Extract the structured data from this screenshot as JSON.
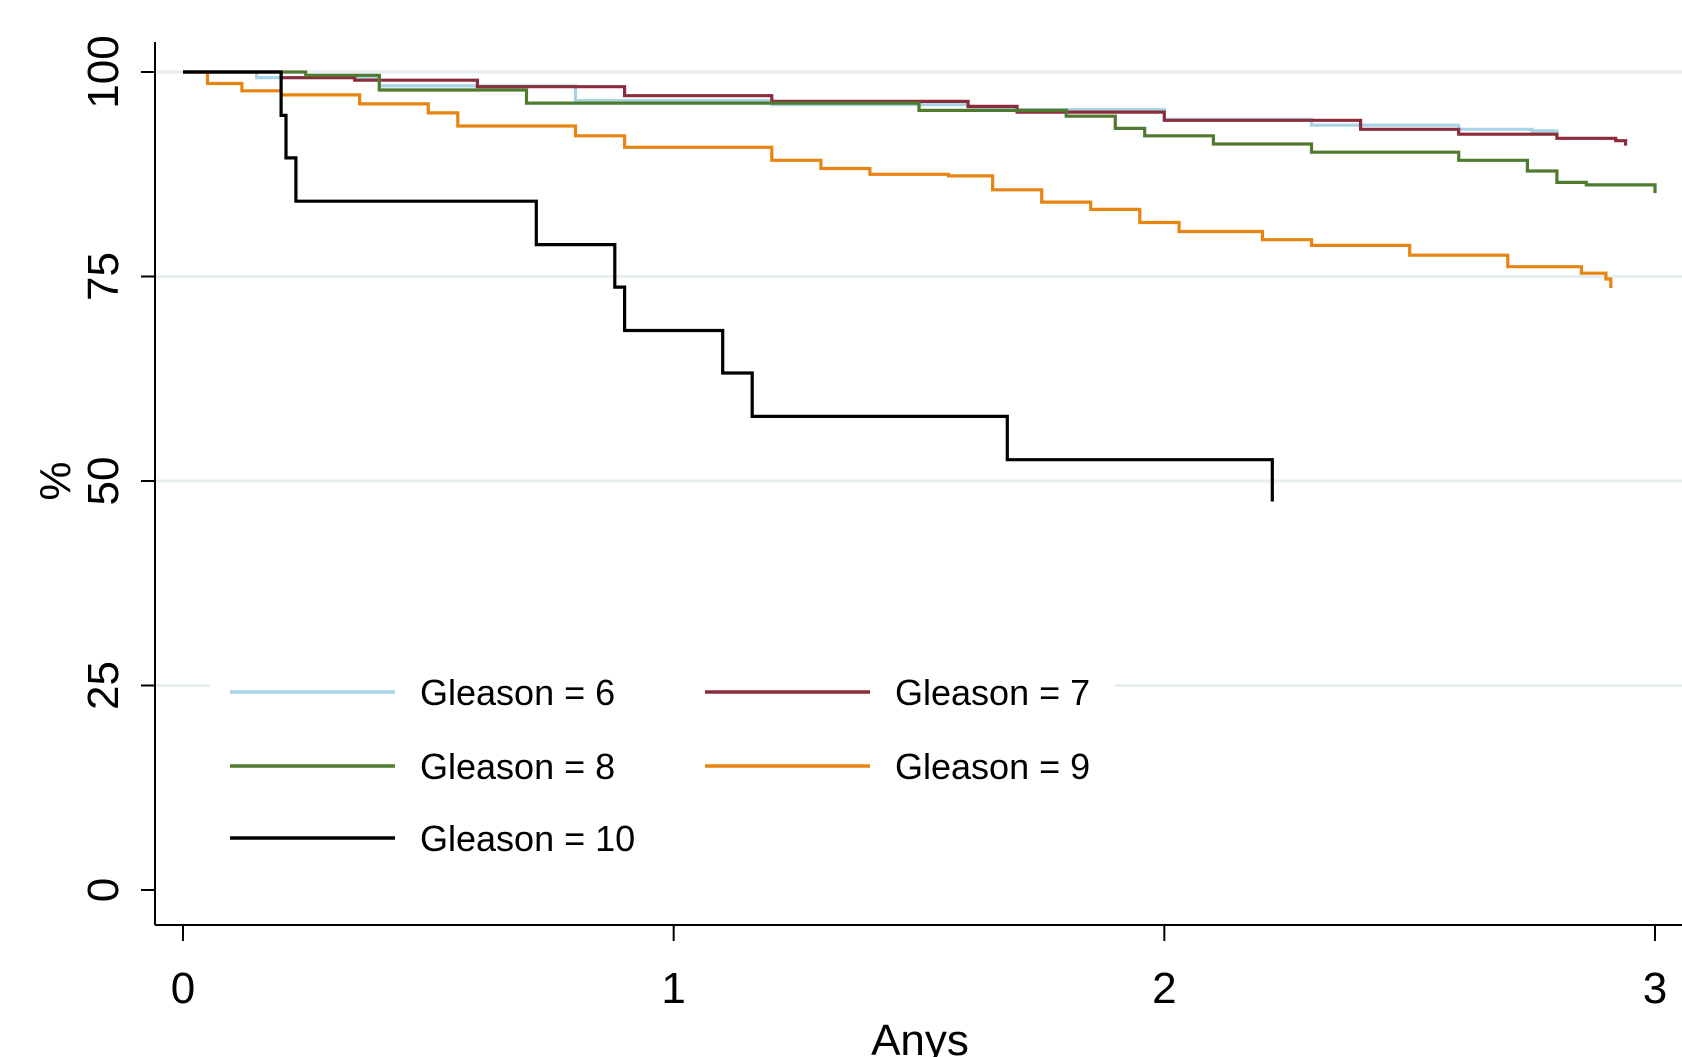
{
  "chart_data": {
    "type": "line",
    "title": "",
    "xlabel": "Anys",
    "ylabel": "%",
    "xlim": [
      0,
      3
    ],
    "ylim": [
      0,
      100
    ],
    "x_ticks": [
      "0",
      "1",
      "2",
      "3"
    ],
    "y_ticks": [
      "0",
      "25",
      "50",
      "75",
      "100"
    ],
    "grid": "horizontal",
    "legend_position": "bottom-left inside",
    "series": [
      {
        "name": "Gleason = 6",
        "color": "#a8d4e6",
        "points": [
          [
            0,
            100
          ],
          [
            0.15,
            99.3
          ],
          [
            0.4,
            98.3
          ],
          [
            0.8,
            96.5
          ],
          [
            1.2,
            96.0
          ],
          [
            1.6,
            95.4
          ],
          [
            2.0,
            94.2
          ],
          [
            2.3,
            93.5
          ],
          [
            2.6,
            93.0
          ],
          [
            2.75,
            92.8
          ],
          [
            2.8,
            92.3
          ]
        ]
      },
      {
        "name": "Gleason = 7",
        "color": "#8b2c3a",
        "points": [
          [
            0,
            100
          ],
          [
            0.2,
            99.3
          ],
          [
            0.35,
            99.0
          ],
          [
            0.6,
            98.2
          ],
          [
            0.9,
            97.1
          ],
          [
            1.2,
            96.4
          ],
          [
            1.6,
            95.8
          ],
          [
            1.7,
            95.1
          ],
          [
            2.0,
            94.1
          ],
          [
            2.4,
            93.0
          ],
          [
            2.6,
            92.4
          ],
          [
            2.8,
            91.9
          ],
          [
            2.92,
            91.6
          ],
          [
            2.94,
            91.0
          ]
        ]
      },
      {
        "name": "Gleason = 8",
        "color": "#4f7a2f",
        "points": [
          [
            0,
            100
          ],
          [
            0.25,
            99.6
          ],
          [
            0.4,
            97.8
          ],
          [
            0.7,
            96.2
          ],
          [
            1.5,
            95.3
          ],
          [
            1.8,
            94.6
          ],
          [
            1.9,
            93.1
          ],
          [
            1.96,
            92.2
          ],
          [
            2.1,
            91.2
          ],
          [
            2.3,
            90.2
          ],
          [
            2.6,
            89.2
          ],
          [
            2.74,
            87.9
          ],
          [
            2.8,
            86.5
          ],
          [
            2.86,
            86.2
          ],
          [
            3.0,
            86.0
          ],
          [
            3.0,
            85.2
          ]
        ]
      },
      {
        "name": "Gleason = 9",
        "color": "#e88411",
        "points": [
          [
            0,
            100
          ],
          [
            0.05,
            98.6
          ],
          [
            0.12,
            97.7
          ],
          [
            0.2,
            97.2
          ],
          [
            0.36,
            96.1
          ],
          [
            0.5,
            95.0
          ],
          [
            0.56,
            93.4
          ],
          [
            0.8,
            92.2
          ],
          [
            0.9,
            90.8
          ],
          [
            1.2,
            89.2
          ],
          [
            1.3,
            88.2
          ],
          [
            1.4,
            87.5
          ],
          [
            1.56,
            87.3
          ],
          [
            1.65,
            85.6
          ],
          [
            1.75,
            84.1
          ],
          [
            1.85,
            83.2
          ],
          [
            1.95,
            81.6
          ],
          [
            2.03,
            80.5
          ],
          [
            2.2,
            79.5
          ],
          [
            2.3,
            78.8
          ],
          [
            2.5,
            77.6
          ],
          [
            2.7,
            76.2
          ],
          [
            2.85,
            75.4
          ],
          [
            2.9,
            74.7
          ],
          [
            2.91,
            73.6
          ]
        ]
      },
      {
        "name": "Gleason = 10",
        "color": "#000000",
        "points": [
          [
            0,
            100
          ],
          [
            0.2,
            100
          ],
          [
            0.2,
            94.7
          ],
          [
            0.21,
            89.5
          ],
          [
            0.23,
            84.2
          ],
          [
            0.72,
            84.2
          ],
          [
            0.72,
            78.9
          ],
          [
            0.88,
            78.9
          ],
          [
            0.88,
            73.7
          ],
          [
            0.9,
            73.7
          ],
          [
            0.9,
            68.4
          ],
          [
            1.1,
            68.4
          ],
          [
            1.1,
            63.2
          ],
          [
            1.16,
            63.2
          ],
          [
            1.16,
            57.9
          ],
          [
            1.68,
            57.9
          ],
          [
            1.68,
            52.6
          ],
          [
            2.22,
            52.6
          ],
          [
            2.22,
            47.5
          ]
        ]
      }
    ]
  }
}
